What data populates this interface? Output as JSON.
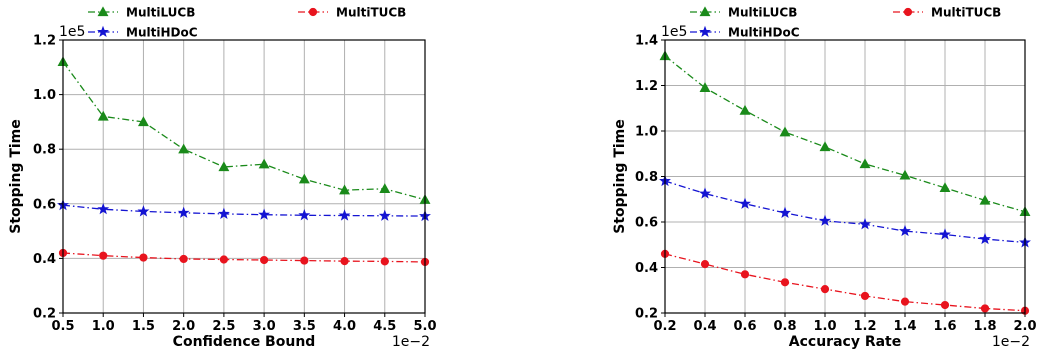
{
  "chart_data": [
    {
      "type": "line",
      "xlabel": "Confidence Bound",
      "ylabel": "Stopping Time",
      "x_multiplier_label": "1e−2",
      "y_multiplier_label": "1e5",
      "xlim": [
        0.5,
        5.0
      ],
      "ylim": [
        0.2,
        1.2
      ],
      "xticks": [
        "0.5",
        "1.0",
        "1.5",
        "2.0",
        "2.5",
        "3.0",
        "3.5",
        "4.0",
        "4.5",
        "5.0"
      ],
      "yticks": [
        "0.2",
        "0.4",
        "0.6",
        "0.8",
        "1.0",
        "1.2"
      ],
      "grid": true,
      "legend_position": "top",
      "x": [
        0.5,
        1.0,
        1.5,
        2.0,
        2.5,
        3.0,
        3.5,
        4.0,
        4.5,
        5.0
      ],
      "series": [
        {
          "name": "MultiLUCB",
          "color": "#1a8a1a",
          "marker": "triangle",
          "values": [
            1.12,
            0.92,
            0.9,
            0.8,
            0.735,
            0.745,
            0.69,
            0.65,
            0.655,
            0.615
          ]
        },
        {
          "name": "MultiTUCB",
          "color": "#e8141e",
          "marker": "circle",
          "values": [
            0.42,
            0.41,
            0.403,
            0.398,
            0.396,
            0.394,
            0.392,
            0.39,
            0.389,
            0.387
          ]
        },
        {
          "name": "MultiHDoC",
          "color": "#1414d2",
          "marker": "star",
          "values": [
            0.595,
            0.58,
            0.572,
            0.567,
            0.563,
            0.56,
            0.558,
            0.557,
            0.556,
            0.555
          ]
        }
      ]
    },
    {
      "type": "line",
      "xlabel": "Accuracy Rate",
      "ylabel": "Stopping Time",
      "x_multiplier_label": "1e−2",
      "y_multiplier_label": "1e5",
      "xlim": [
        0.2,
        2.0
      ],
      "ylim": [
        0.2,
        1.4
      ],
      "xticks": [
        "0.2",
        "0.4",
        "0.6",
        "0.8",
        "1.0",
        "1.2",
        "1.4",
        "1.6",
        "1.8",
        "2.0"
      ],
      "yticks": [
        "0.2",
        "0.4",
        "0.6",
        "0.8",
        "1.0",
        "1.2",
        "1.4"
      ],
      "grid": true,
      "legend_position": "top",
      "x": [
        0.2,
        0.4,
        0.6,
        0.8,
        1.0,
        1.2,
        1.4,
        1.6,
        1.8,
        2.0
      ],
      "series": [
        {
          "name": "MultiLUCB",
          "color": "#1a8a1a",
          "marker": "triangle",
          "values": [
            1.33,
            1.19,
            1.09,
            0.995,
            0.93,
            0.855,
            0.805,
            0.75,
            0.695,
            0.645
          ]
        },
        {
          "name": "MultiTUCB",
          "color": "#e8141e",
          "marker": "circle",
          "values": [
            0.46,
            0.415,
            0.37,
            0.335,
            0.305,
            0.275,
            0.25,
            0.235,
            0.22,
            0.21
          ]
        },
        {
          "name": "MultiHDoC",
          "color": "#1414d2",
          "marker": "star",
          "values": [
            0.78,
            0.725,
            0.68,
            0.64,
            0.605,
            0.59,
            0.56,
            0.545,
            0.525,
            0.51
          ]
        }
      ]
    }
  ]
}
